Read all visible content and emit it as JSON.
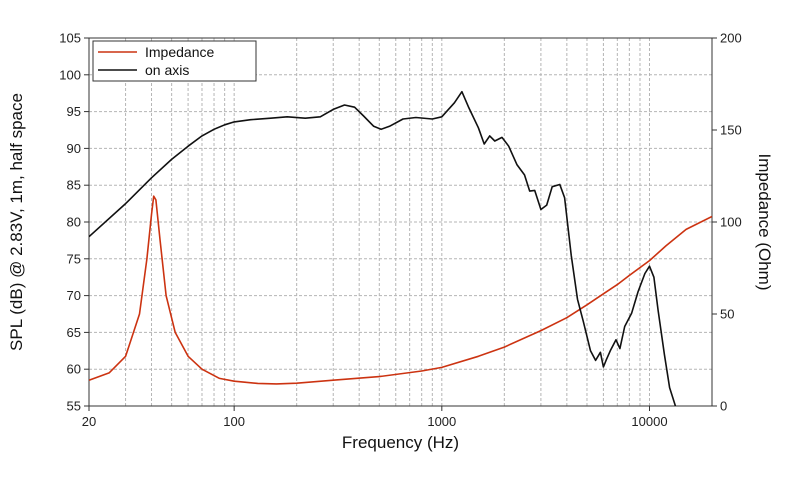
{
  "chart_data": {
    "type": "line",
    "xlabel": "Frequency (Hz)",
    "ylabel": "SPL (dB) @ 2.83V, 1m, half space",
    "y2label": "Impedance (Ohm)",
    "xscale": "log",
    "xlim": [
      20,
      20000
    ],
    "ylim": [
      55,
      105
    ],
    "y2lim": [
      0,
      200
    ],
    "grid": true,
    "legend": "top-left",
    "x_ticks": [
      {
        "value": 20,
        "label": "20"
      },
      {
        "value": 100,
        "label": "100"
      },
      {
        "value": 1000,
        "label": "1000"
      },
      {
        "value": 10000,
        "label": "10000"
      }
    ],
    "y_ticks": [
      {
        "value": 55,
        "label": "55"
      },
      {
        "value": 60,
        "label": "60"
      },
      {
        "value": 65,
        "label": "65"
      },
      {
        "value": 70,
        "label": "70"
      },
      {
        "value": 75,
        "label": "75"
      },
      {
        "value": 80,
        "label": "80"
      },
      {
        "value": 85,
        "label": "85"
      },
      {
        "value": 90,
        "label": "90"
      },
      {
        "value": 95,
        "label": "95"
      },
      {
        "value": 100,
        "label": "100"
      },
      {
        "value": 105,
        "label": "105"
      }
    ],
    "y2_ticks": [
      {
        "value": 0,
        "label": "0"
      },
      {
        "value": 50,
        "label": "50"
      },
      {
        "value": 100,
        "label": "100"
      },
      {
        "value": 150,
        "label": "150"
      },
      {
        "value": 200,
        "label": "200"
      }
    ],
    "series": [
      {
        "name": "Impedance",
        "axis": "right",
        "color": "#cc3311",
        "points": [
          [
            20,
            14
          ],
          [
            25,
            18
          ],
          [
            30,
            27
          ],
          [
            35,
            50
          ],
          [
            38,
            80
          ],
          [
            40,
            104
          ],
          [
            41,
            114
          ],
          [
            42,
            112
          ],
          [
            44,
            90
          ],
          [
            47,
            60
          ],
          [
            52,
            40
          ],
          [
            60,
            27
          ],
          [
            70,
            20
          ],
          [
            85,
            15
          ],
          [
            100,
            13.5
          ],
          [
            130,
            12.3
          ],
          [
            160,
            12
          ],
          [
            200,
            12.4
          ],
          [
            300,
            14
          ],
          [
            500,
            16
          ],
          [
            800,
            19
          ],
          [
            1000,
            21
          ],
          [
            1500,
            27
          ],
          [
            2000,
            32
          ],
          [
            3000,
            41
          ],
          [
            4000,
            48
          ],
          [
            5000,
            55
          ],
          [
            6000,
            61
          ],
          [
            7000,
            66
          ],
          [
            8000,
            71
          ],
          [
            10000,
            79
          ],
          [
            12000,
            87
          ],
          [
            15000,
            96
          ],
          [
            20000,
            103
          ]
        ]
      },
      {
        "name": "on axis",
        "axis": "left",
        "color": "#111111",
        "points": [
          [
            20,
            78
          ],
          [
            30,
            82.5
          ],
          [
            40,
            86
          ],
          [
            50,
            88.5
          ],
          [
            60,
            90.3
          ],
          [
            70,
            91.7
          ],
          [
            80,
            92.6
          ],
          [
            90,
            93.2
          ],
          [
            100,
            93.6
          ],
          [
            120,
            93.9
          ],
          [
            150,
            94.1
          ],
          [
            180,
            94.3
          ],
          [
            220,
            94.1
          ],
          [
            260,
            94.3
          ],
          [
            300,
            95.3
          ],
          [
            340,
            95.9
          ],
          [
            380,
            95.6
          ],
          [
            420,
            94.4
          ],
          [
            470,
            93.0
          ],
          [
            510,
            92.6
          ],
          [
            560,
            93.0
          ],
          [
            650,
            94.0
          ],
          [
            750,
            94.2
          ],
          [
            900,
            94.0
          ],
          [
            1000,
            94.3
          ],
          [
            1150,
            96.2
          ],
          [
            1250,
            97.7
          ],
          [
            1350,
            95.5
          ],
          [
            1500,
            92.8
          ],
          [
            1600,
            90.6
          ],
          [
            1700,
            91.7
          ],
          [
            1800,
            91.0
          ],
          [
            1950,
            91.5
          ],
          [
            2100,
            90.3
          ],
          [
            2300,
            87.8
          ],
          [
            2500,
            86.4
          ],
          [
            2650,
            84.2
          ],
          [
            2800,
            84.3
          ],
          [
            3000,
            81.7
          ],
          [
            3200,
            82.3
          ],
          [
            3400,
            84.8
          ],
          [
            3700,
            85.1
          ],
          [
            3900,
            83.3
          ],
          [
            4200,
            75.5
          ],
          [
            4500,
            69.5
          ],
          [
            4800,
            66.5
          ],
          [
            5200,
            62.5
          ],
          [
            5500,
            61.2
          ],
          [
            5800,
            62.3
          ],
          [
            6000,
            60.3
          ],
          [
            6200,
            61.3
          ],
          [
            6500,
            62.6
          ],
          [
            6900,
            64.0
          ],
          [
            7200,
            62.8
          ],
          [
            7600,
            65.8
          ],
          [
            8200,
            67.6
          ],
          [
            8800,
            70.5
          ],
          [
            9500,
            73.0
          ],
          [
            10000,
            74.0
          ],
          [
            10500,
            72.5
          ],
          [
            11000,
            68.0
          ],
          [
            11800,
            62.0
          ],
          [
            12500,
            57.5
          ],
          [
            13500,
            54.5
          ]
        ]
      }
    ]
  }
}
